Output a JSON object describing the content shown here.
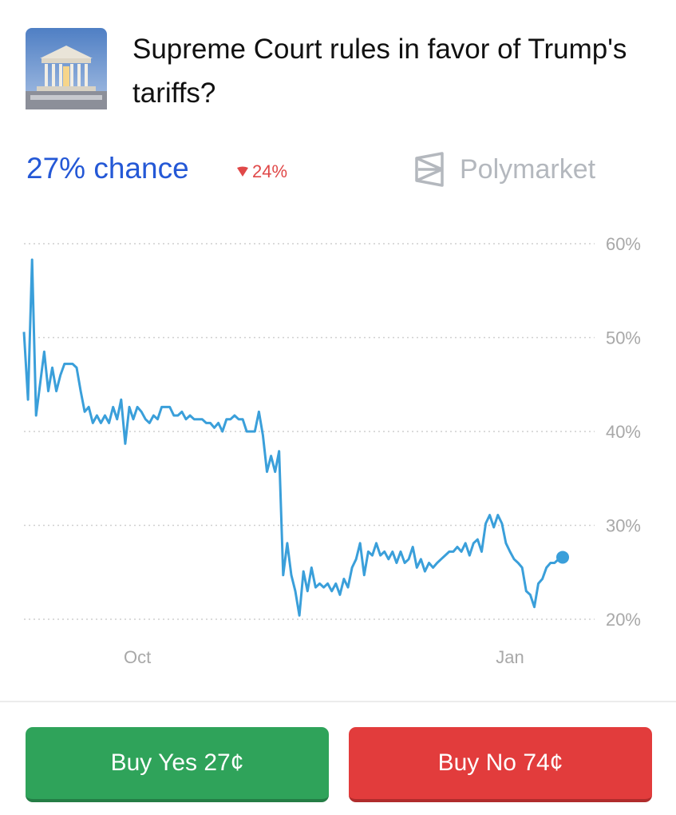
{
  "header": {
    "title": "Supreme Court rules in favor of Trump's tariffs?",
    "chance": "27% chance",
    "change": "24%",
    "brand": "Polymarket"
  },
  "chart_data": {
    "type": "line",
    "color": "#3a9fda",
    "grid": true,
    "xlim": [
      0,
      133
    ],
    "xticks": [
      {
        "value": 28,
        "label": "Oct"
      },
      {
        "value": 120,
        "label": "Jan"
      }
    ],
    "ylim": [
      20,
      60
    ],
    "yticks": [
      {
        "value": 20,
        "label": "20%"
      },
      {
        "value": 30,
        "label": "30%"
      },
      {
        "value": 40,
        "label": "40%"
      },
      {
        "value": 50,
        "label": "50%"
      },
      {
        "value": 60,
        "label": "60%"
      }
    ],
    "x": [
      0,
      1,
      2,
      3,
      4,
      5,
      6,
      7,
      8,
      9,
      10,
      11,
      12,
      13,
      14,
      15,
      16,
      17,
      18,
      19,
      20,
      21,
      22,
      23,
      24,
      25,
      26,
      27,
      28,
      29,
      30,
      31,
      32,
      33,
      34,
      35,
      36,
      37,
      38,
      39,
      40,
      41,
      42,
      43,
      44,
      45,
      46,
      47,
      48,
      49,
      50,
      51,
      52,
      53,
      54,
      55,
      56,
      57,
      58,
      59,
      60,
      61,
      62,
      63,
      64,
      65,
      66,
      67,
      68,
      69,
      70,
      71,
      72,
      73,
      74,
      75,
      76,
      77,
      78,
      79,
      80,
      81,
      82,
      83,
      84,
      85,
      86,
      87,
      88,
      89,
      90,
      91,
      92,
      93,
      94,
      95,
      96,
      97,
      98,
      99,
      100,
      101,
      102,
      103,
      104,
      105,
      106,
      107,
      108,
      109,
      110,
      111,
      112,
      113,
      114,
      115,
      116,
      117,
      118,
      119,
      120,
      121,
      122,
      123,
      124,
      125,
      126,
      127,
      128,
      129,
      130,
      131,
      132,
      133
    ],
    "values": [
      50.6,
      43.4,
      58.3,
      41.7,
      45.1,
      48.5,
      44.3,
      46.8,
      44.3,
      46.0,
      47.2,
      47.2,
      47.2,
      46.8,
      44.3,
      42.1,
      42.6,
      40.9,
      41.7,
      40.9,
      41.7,
      40.9,
      42.6,
      41.3,
      43.4,
      38.7,
      42.6,
      41.3,
      42.6,
      42.1,
      41.3,
      40.9,
      41.7,
      41.3,
      42.6,
      42.6,
      42.6,
      41.7,
      41.7,
      42.1,
      41.3,
      41.7,
      41.3,
      41.3,
      41.3,
      40.9,
      40.9,
      40.4,
      40.9,
      40.0,
      41.3,
      41.3,
      41.7,
      41.3,
      41.3,
      40.0,
      40.0,
      40.0,
      42.1,
      39.6,
      35.7,
      37.4,
      35.7,
      37.9,
      24.7,
      28.1,
      24.7,
      23.0,
      20.4,
      25.1,
      23.0,
      25.5,
      23.4,
      23.8,
      23.4,
      23.8,
      23.0,
      23.8,
      22.6,
      24.3,
      23.4,
      25.5,
      26.4,
      28.1,
      24.7,
      27.2,
      26.8,
      28.1,
      26.8,
      27.2,
      26.4,
      27.2,
      26.0,
      27.2,
      26.0,
      26.4,
      27.7,
      25.5,
      26.4,
      25.1,
      26.0,
      25.5,
      26.0,
      26.4,
      26.8,
      27.2,
      27.2,
      27.7,
      27.2,
      28.1,
      26.8,
      28.1,
      28.5,
      27.2,
      30.2,
      31.1,
      29.8,
      31.1,
      30.2,
      28.1,
      27.2,
      26.4,
      26.0,
      25.5,
      23.0,
      22.6,
      21.3,
      23.8,
      24.3,
      25.5,
      26.0,
      26.0,
      26.4,
      26.6
    ]
  },
  "buttons": {
    "yes": "Buy Yes 27¢",
    "no": "Buy No 74¢"
  }
}
